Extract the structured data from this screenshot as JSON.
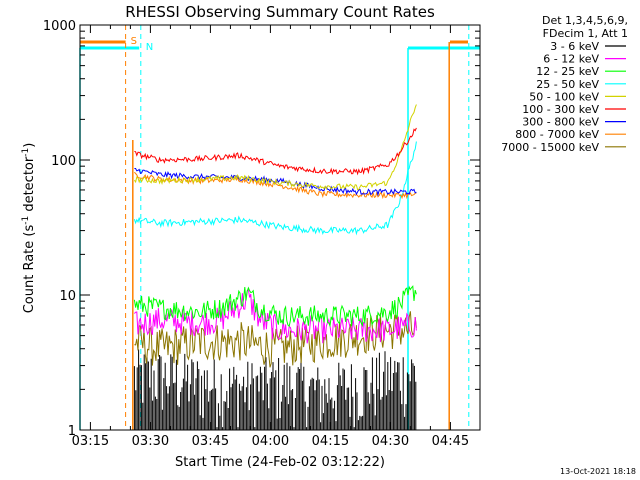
{
  "chart_data": {
    "type": "line",
    "title": "RHESSI Observing Summary Count Rates",
    "xlabel": "Start Time (24-Feb-02 03:12:22)",
    "ylabel_main": "Count Rate (s",
    "ylabel_sup1": "-1",
    "ylabel_mid": " detector",
    "ylabel_sup2": "-1",
    "ylabel_end": ")",
    "y_scale": "log",
    "ylim": [
      1,
      1000
    ],
    "xlim_minutes": [
      0,
      100
    ],
    "x_ticks": [
      {
        "label": "03:15",
        "t": 2.6
      },
      {
        "label": "03:30",
        "t": 17.6
      },
      {
        "label": "03:45",
        "t": 32.6
      },
      {
        "label": "04:00",
        "t": 47.6
      },
      {
        "label": "04:15",
        "t": 62.6
      },
      {
        "label": "04:30",
        "t": 77.6
      },
      {
        "label": "04:45",
        "t": 92.6
      }
    ],
    "y_ticks": [
      {
        "label": "1",
        "value": 1
      },
      {
        "label": "10",
        "value": 10
      },
      {
        "label": "100",
        "value": 100
      },
      {
        "label": "1000",
        "value": 1000
      }
    ],
    "legend_placement": "right",
    "legend_header": [
      "Det 1,3,4,5,6,9,",
      "FDecim 1, Att 1"
    ],
    "series": [
      {
        "name": "3 - 6 keV",
        "color": "#000000",
        "x": [
          13.5,
          20,
          30,
          40,
          50,
          60,
          70,
          77,
          84
        ],
        "y": [
          2.2,
          2.2,
          2.0,
          1.8,
          2.0,
          1.7,
          1.9,
          2.2,
          2.4
        ]
      },
      {
        "name": "6 - 12 keV",
        "color": "#ff00ff",
        "x": [
          13.5,
          20,
          30,
          35,
          40,
          42,
          45,
          50,
          60,
          70,
          77,
          84
        ],
        "y": [
          6.0,
          6.5,
          6.2,
          6.5,
          8.5,
          9.5,
          6.5,
          5.5,
          5.5,
          5.5,
          5.5,
          6.0
        ]
      },
      {
        "name": "12 - 25 keV",
        "color": "#00ff00",
        "x": [
          13.5,
          20,
          30,
          35,
          40,
          42,
          45,
          50,
          60,
          70,
          77,
          80,
          84
        ],
        "y": [
          8.5,
          8.0,
          7.5,
          8.0,
          9.5,
          10.5,
          8.0,
          7.0,
          7.0,
          7.0,
          7.5,
          8.5,
          11.0
        ]
      },
      {
        "name": "25 - 50 keV",
        "color": "#00ffff",
        "x": [
          13.5,
          20,
          30,
          40,
          50,
          60,
          70,
          77,
          80,
          84
        ],
        "y": [
          36,
          34,
          35,
          36,
          32,
          30,
          30,
          33,
          50,
          130
        ]
      },
      {
        "name": "50 - 100 keV",
        "color": "#d2d200",
        "x": [
          13.5,
          20,
          30,
          40,
          50,
          60,
          70,
          77,
          80,
          84
        ],
        "y": [
          72,
          70,
          72,
          74,
          68,
          64,
          63,
          68,
          110,
          260
        ]
      },
      {
        "name": "100 - 300 keV",
        "color": "#ff0000",
        "x": [
          13.5,
          20,
          30,
          40,
          50,
          60,
          70,
          77,
          80,
          84
        ],
        "y": [
          112,
          100,
          102,
          108,
          90,
          83,
          82,
          92,
          115,
          170
        ]
      },
      {
        "name": "300 - 800 keV",
        "color": "#0000ff",
        "x": [
          13.5,
          20,
          30,
          40,
          50,
          60,
          70,
          77,
          84
        ],
        "y": [
          85,
          78,
          75,
          74,
          70,
          62,
          58,
          58,
          58
        ]
      },
      {
        "name": "800 - 7000 keV",
        "color": "#ff8000",
        "x": [
          13.5,
          20,
          30,
          40,
          50,
          60,
          70,
          77,
          84
        ],
        "y": [
          78,
          72,
          70,
          72,
          65,
          56,
          55,
          55,
          55
        ]
      },
      {
        "name": "7000 - 15000 keV",
        "color": "#8b7500",
        "x": [
          13.5,
          20,
          30,
          40,
          45,
          50,
          60,
          70,
          77,
          84
        ],
        "y": [
          4.5,
          4.0,
          4.5,
          4.5,
          4.2,
          4.0,
          4.5,
          5.0,
          5.5,
          5.5
        ]
      }
    ],
    "flag_lines": [
      {
        "label": "S",
        "color": "#ff8000",
        "t": 11.4,
        "dashed": true
      },
      {
        "label": "N",
        "color": "#00ffff",
        "t": 15.2,
        "dashed": true
      },
      {
        "label": "",
        "color": "#00ffff",
        "t": 97.2,
        "dashed": true
      }
    ],
    "timestamp": "13-Oct-2021 18:18"
  }
}
